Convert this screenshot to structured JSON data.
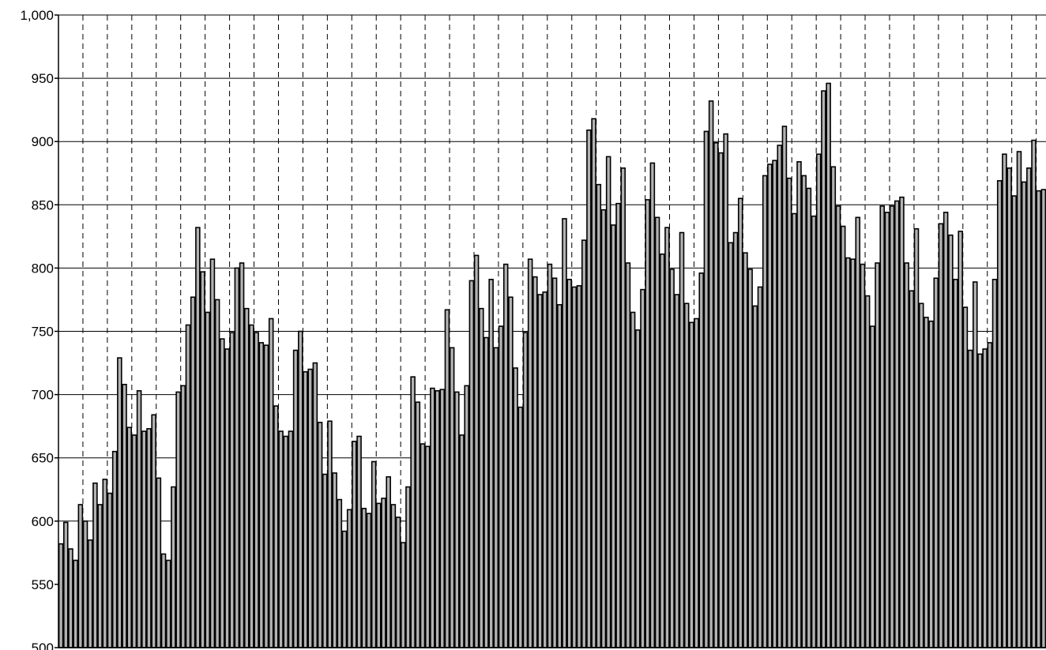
{
  "chart_data": {
    "type": "bar",
    "title": "",
    "xlabel": "",
    "ylabel": "",
    "ylim": [
      500,
      1000
    ],
    "y_ticks": [
      "500",
      "550",
      "600",
      "650",
      "700",
      "750",
      "800",
      "850",
      "900",
      "950",
      "1,000"
    ],
    "y_tick_values": [
      500,
      550,
      600,
      650,
      700,
      750,
      800,
      850,
      900,
      950,
      1000
    ],
    "grid": {
      "horizontal": "solid",
      "vertical": "dashed"
    },
    "bar_color": "#b3b3b3",
    "bar_edge_color": "#000000",
    "vertical_grid_every_n_bars": 5,
    "values": [
      582,
      599,
      578,
      569,
      613,
      600,
      585,
      630,
      613,
      633,
      622,
      655,
      729,
      708,
      674,
      668,
      703,
      671,
      673,
      684,
      634,
      574,
      569,
      627,
      702,
      707,
      755,
      777,
      832,
      797,
      765,
      807,
      775,
      744,
      736,
      749,
      800,
      804,
      768,
      755,
      749,
      741,
      739,
      760,
      691,
      671,
      667,
      671,
      735,
      750,
      718,
      720,
      725,
      678,
      637,
      679,
      638,
      617,
      592,
      609,
      663,
      667,
      610,
      606,
      647,
      614,
      618,
      635,
      613,
      603,
      583,
      627,
      714,
      694,
      661,
      659,
      705,
      703,
      704,
      767,
      737,
      702,
      668,
      707,
      790,
      810,
      768,
      745,
      791,
      737,
      754,
      803,
      777,
      721,
      690,
      749,
      807,
      793,
      779,
      781,
      803,
      792,
      771,
      839,
      791,
      785,
      786,
      822,
      909,
      918,
      866,
      846,
      888,
      834,
      851,
      879,
      804,
      765,
      751,
      783,
      854,
      883,
      840,
      811,
      832,
      799,
      779,
      828,
      772,
      757,
      760,
      796,
      908,
      932,
      899,
      891,
      906,
      820,
      828,
      855,
      812,
      799,
      770,
      785,
      873,
      882,
      885,
      897,
      912,
      871,
      843,
      884,
      873,
      863,
      841,
      890,
      940,
      946,
      880,
      849,
      833,
      808,
      807,
      840,
      803,
      778,
      754,
      804,
      849,
      844,
      849,
      853,
      856,
      804,
      782,
      831,
      772,
      761,
      758,
      792,
      835,
      844,
      826,
      791,
      829,
      769,
      735,
      789,
      732,
      736,
      741,
      791,
      869,
      890,
      879,
      857,
      892,
      868,
      879,
      901,
      861,
      862
    ]
  }
}
